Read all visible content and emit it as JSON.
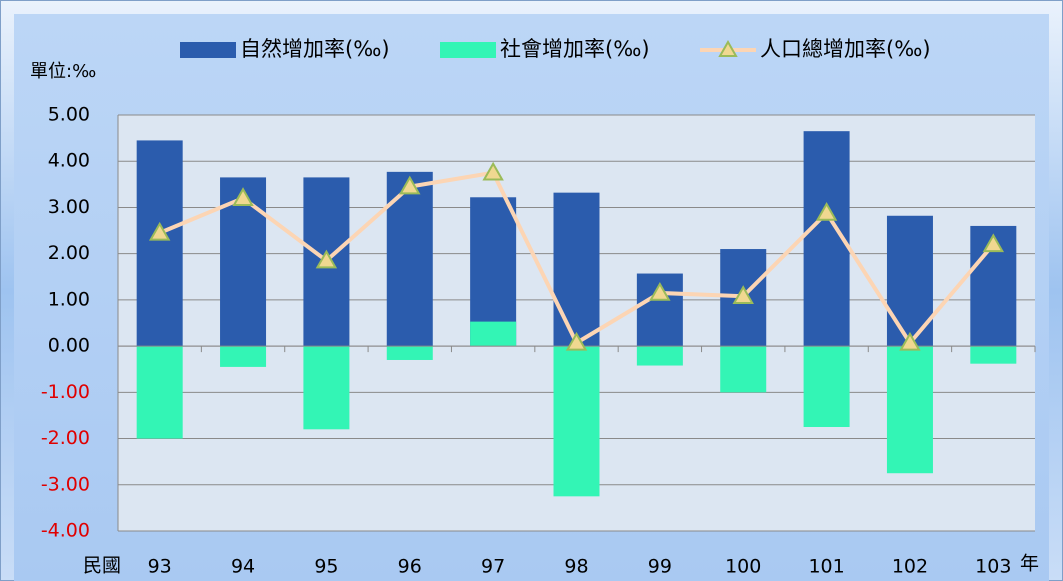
{
  "chart_data": {
    "type": "bar",
    "y_unit_label": "單位:‰",
    "x_label_prefix": "民國",
    "x_label_suffix": "年",
    "categories": [
      "93",
      "94",
      "95",
      "96",
      "97",
      "98",
      "99",
      "100",
      "101",
      "102",
      "103"
    ],
    "series": [
      {
        "name": "自然增加率(‰)",
        "color": "#2b5cad",
        "values": [
          4.45,
          3.65,
          3.65,
          3.77,
          3.22,
          3.32,
          1.57,
          2.1,
          4.65,
          2.82,
          2.6
        ]
      },
      {
        "name": "社會增加率(‰)",
        "color": "#33f5b5",
        "values": [
          -2.0,
          -0.45,
          -1.8,
          -0.3,
          0.53,
          -3.25,
          -0.42,
          -1.0,
          -1.75,
          -2.75,
          -0.38
        ]
      },
      {
        "name": "人口總增加率(‰)",
        "type": "line",
        "color": "#fcd5b4",
        "marker": "triangle",
        "marker_color": "#f0d890",
        "marker_edge_color": "#9bbb59",
        "values": [
          2.45,
          3.2,
          1.85,
          3.45,
          3.75,
          0.07,
          1.15,
          1.08,
          2.88,
          0.07,
          2.2
        ]
      }
    ],
    "ylim": [
      -4,
      5
    ],
    "yticks": [
      {
        "value": -4,
        "label": "-4.00"
      },
      {
        "value": -3,
        "label": "-3.00"
      },
      {
        "value": -2,
        "label": "-2.00"
      },
      {
        "value": -1,
        "label": "-1.00"
      },
      {
        "value": 0,
        "label": "0.00"
      },
      {
        "value": 1,
        "label": "1.00"
      },
      {
        "value": 2,
        "label": "2.00"
      },
      {
        "value": 3,
        "label": "3.00"
      },
      {
        "value": 4,
        "label": "4.00"
      },
      {
        "value": 5,
        "label": "5.00"
      }
    ],
    "grid": true,
    "legend": "top"
  }
}
